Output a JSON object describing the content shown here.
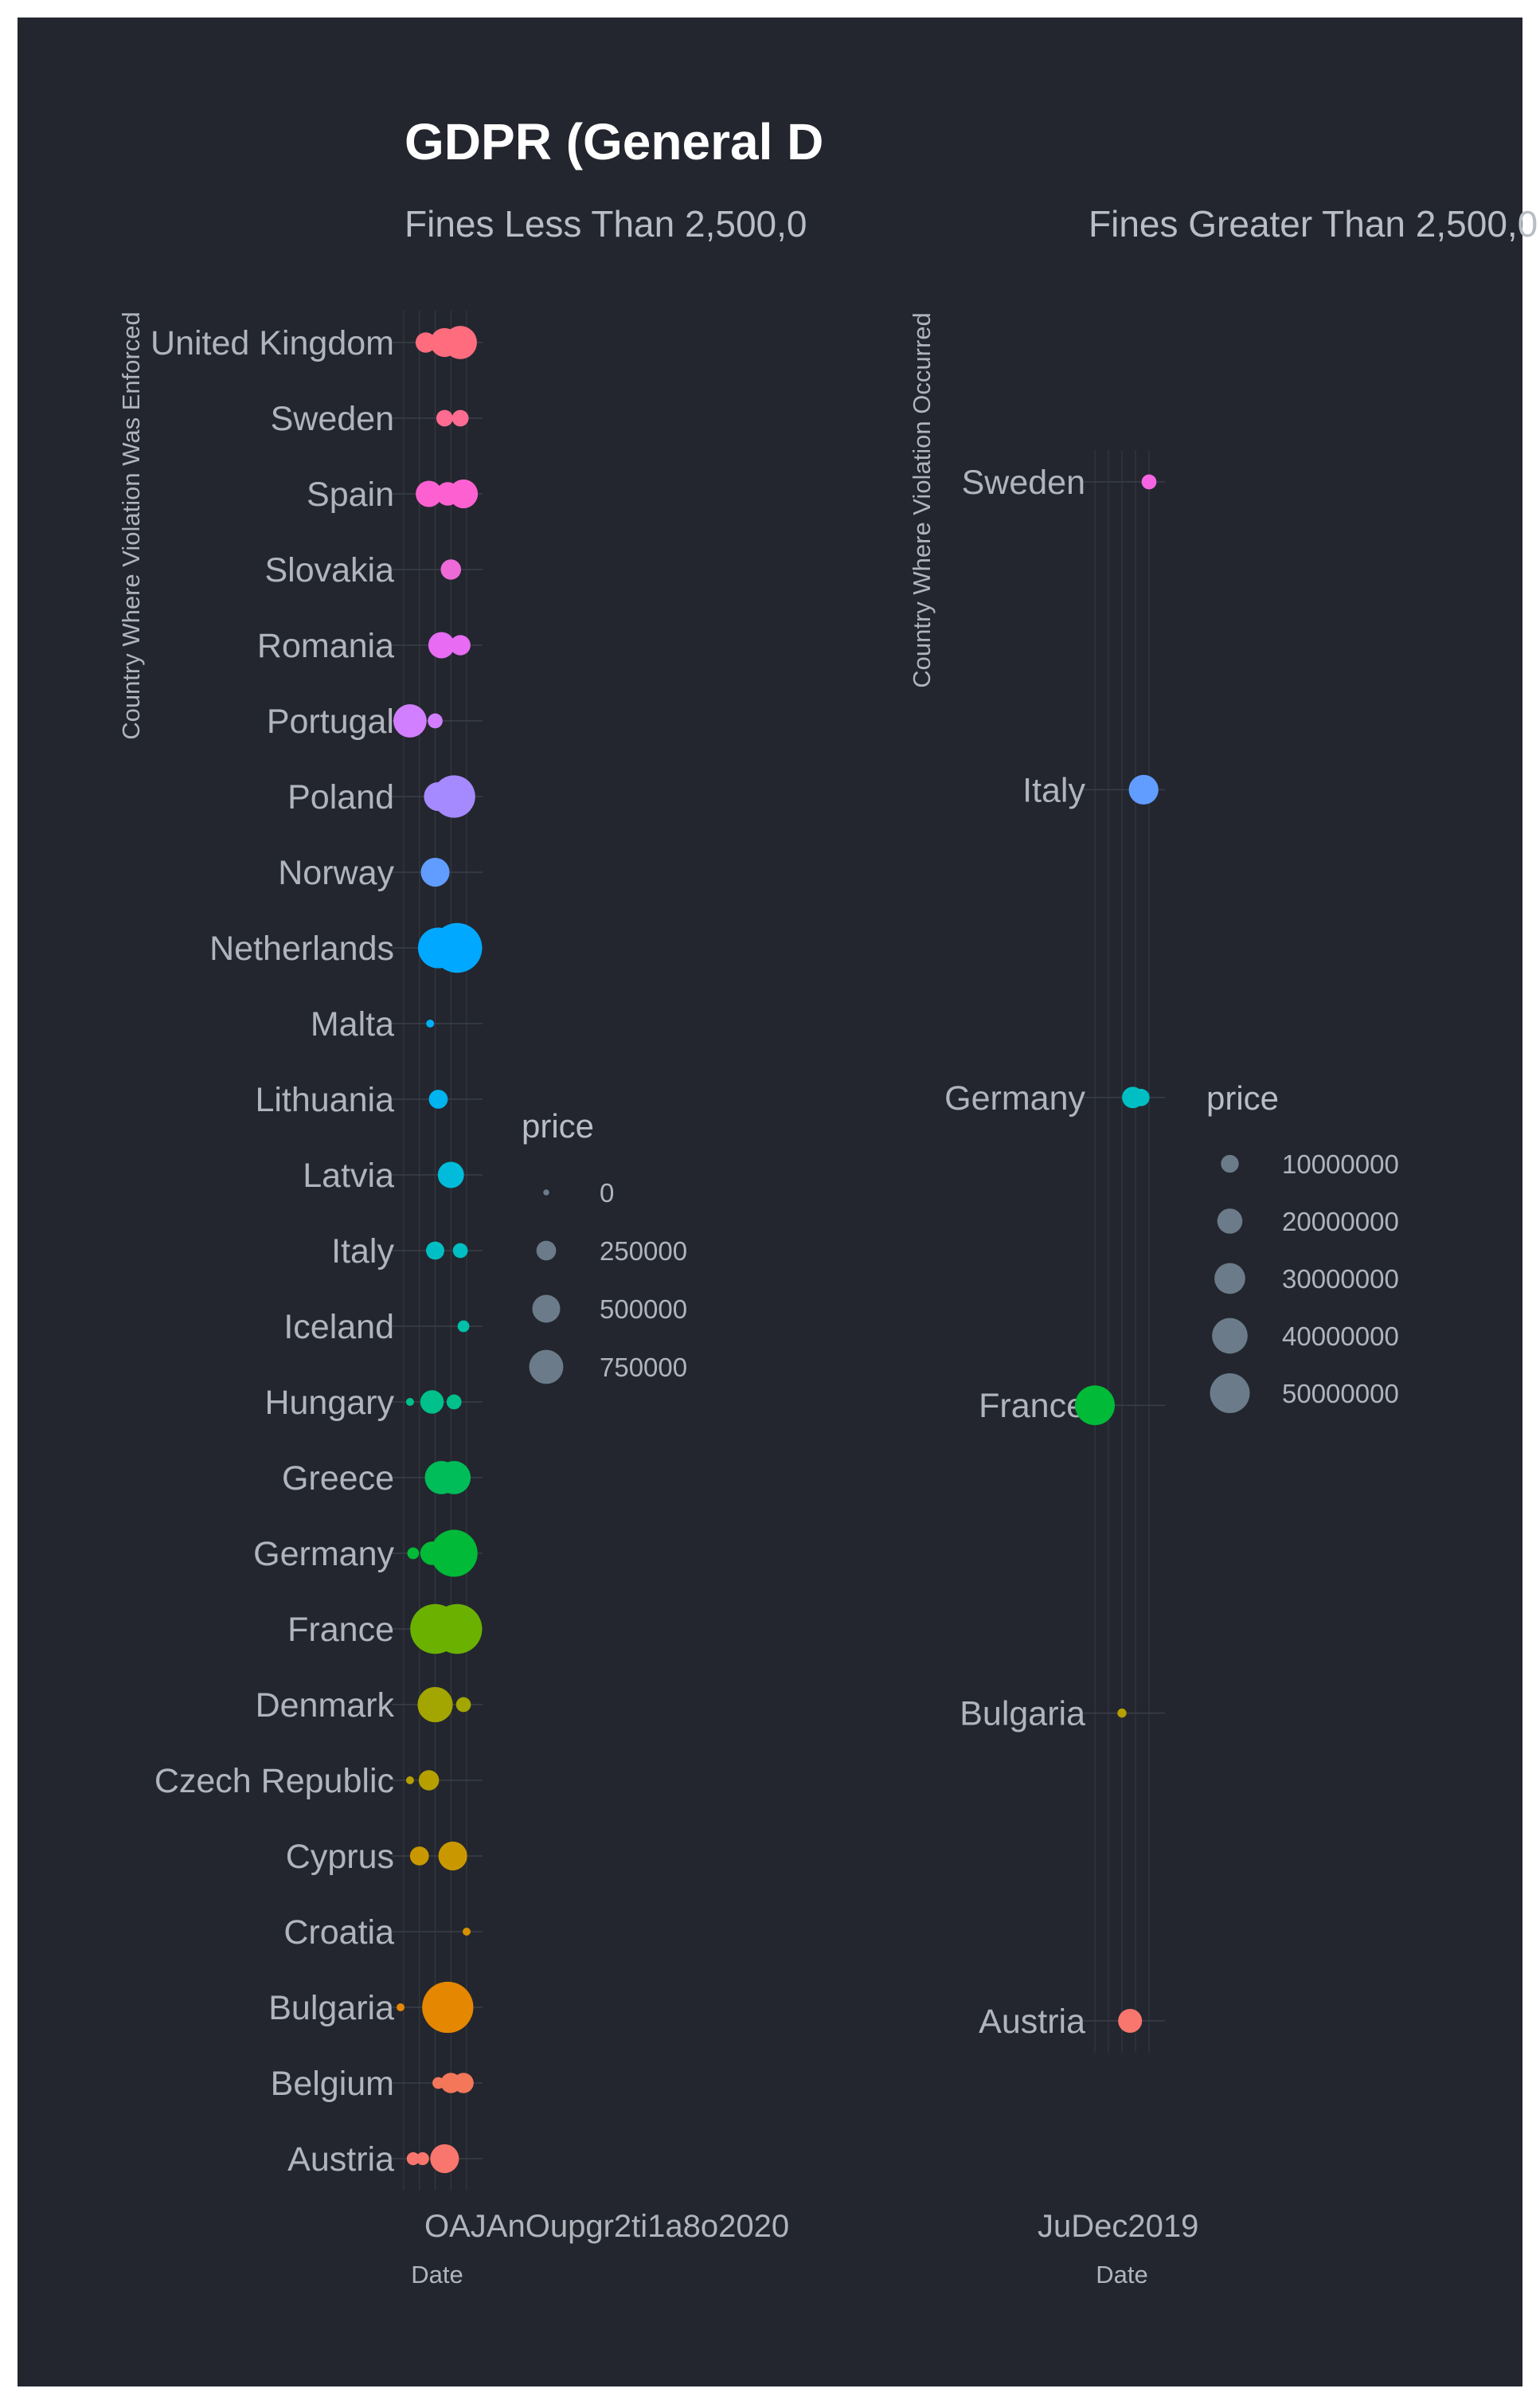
{
  "title": "GDPR (General D",
  "chart_data": [
    {
      "type": "scatter",
      "subtitle": "Fines Less Than 2,500,0",
      "xlabel": "Date",
      "ylabel": "Country Where Violation Was Enforced",
      "x_tick_labels_overlapping": "OAJAnOupgr2ti1a8o2020",
      "x_tick_labels": [
        "Oct 2018",
        "Apr 2019",
        "Jul 2019",
        "Oct 2019",
        "Jan 2020"
      ],
      "xlim": [
        0,
        1
      ],
      "categories": [
        "Austria",
        "Belgium",
        "Bulgaria",
        "Croatia",
        "Cyprus",
        "Czech Republic",
        "Denmark",
        "France",
        "Germany",
        "Greece",
        "Hungary",
        "Iceland",
        "Italy",
        "Latvia",
        "Lithuania",
        "Malta",
        "Netherlands",
        "Norway",
        "Poland",
        "Portugal",
        "Romania",
        "Slovakia",
        "Spain",
        "Sweden",
        "United Kingdom"
      ],
      "colors": [
        "#f8766d",
        "#f4775a",
        "#e58700",
        "#d89000",
        "#c99800",
        "#b6a000",
        "#a3a500",
        "#6bb100",
        "#00ba38",
        "#00bc59",
        "#00c08b",
        "#00c0a9",
        "#00bfc4",
        "#00bbda",
        "#00b4ef",
        "#00b0f6",
        "#00a9ff",
        "#619cff",
        "#a58aff",
        "#d27fff",
        "#e76bf3",
        "#ee6ad6",
        "#fd61d1",
        "#ff6c91",
        "#ff6c7e"
      ],
      "points": [
        {
          "country": "Austria",
          "date": 0.15,
          "price": 60000
        },
        {
          "country": "Austria",
          "date": 0.3,
          "price": 60000
        },
        {
          "country": "Austria",
          "date": 0.65,
          "price": 300000
        },
        {
          "country": "Belgium",
          "date": 0.55,
          "price": 50000
        },
        {
          "country": "Belgium",
          "date": 0.75,
          "price": 150000
        },
        {
          "country": "Belgium",
          "date": 0.95,
          "price": 150000
        },
        {
          "country": "Bulgaria",
          "date": -0.05,
          "price": 5000
        },
        {
          "country": "Bulgaria",
          "date": 0.4,
          "price": 20000
        },
        {
          "country": "Bulgaria",
          "date": 0.7,
          "price": 950000
        },
        {
          "country": "Croatia",
          "date": 1.0,
          "price": 5000
        },
        {
          "country": "Cyprus",
          "date": 0.25,
          "price": 130000
        },
        {
          "country": "Cyprus",
          "date": 0.78,
          "price": 300000
        },
        {
          "country": "Czech Republic",
          "date": 0.1,
          "price": 20000
        },
        {
          "country": "Czech Republic",
          "date": 0.4,
          "price": 150000
        },
        {
          "country": "Denmark",
          "date": 0.5,
          "price": 450000
        },
        {
          "country": "Denmark",
          "date": 0.95,
          "price": 80000
        },
        {
          "country": "France",
          "date": 0.5,
          "price": 900000
        },
        {
          "country": "France",
          "date": 0.85,
          "price": 900000
        },
        {
          "country": "Germany",
          "date": 0.15,
          "price": 50000
        },
        {
          "country": "Germany",
          "date": 0.45,
          "price": 200000
        },
        {
          "country": "Germany",
          "date": 0.8,
          "price": 800000
        },
        {
          "country": "Greece",
          "date": 0.6,
          "price": 400000
        },
        {
          "country": "Greece",
          "date": 0.8,
          "price": 400000
        },
        {
          "country": "Hungary",
          "date": 0.1,
          "price": 20000
        },
        {
          "country": "Hungary",
          "date": 0.45,
          "price": 200000
        },
        {
          "country": "Hungary",
          "date": 0.8,
          "price": 80000
        },
        {
          "country": "Iceland",
          "date": 0.95,
          "price": 50000
        },
        {
          "country": "Italy",
          "date": 0.5,
          "price": 120000
        },
        {
          "country": "Italy",
          "date": 0.9,
          "price": 80000
        },
        {
          "country": "Latvia",
          "date": 0.75,
          "price": 250000
        },
        {
          "country": "Lithuania",
          "date": 0.55,
          "price": 130000
        },
        {
          "country": "Malta",
          "date": 0.42,
          "price": 5000
        },
        {
          "country": "Netherlands",
          "date": 0.55,
          "price": 600000
        },
        {
          "country": "Netherlands",
          "date": 0.85,
          "price": 900000
        },
        {
          "country": "Norway",
          "date": 0.5,
          "price": 300000
        },
        {
          "country": "Poland",
          "date": 0.55,
          "price": 300000
        },
        {
          "country": "Poland",
          "date": 0.8,
          "price": 650000
        },
        {
          "country": "Portugal",
          "date": 0.1,
          "price": 400000
        },
        {
          "country": "Portugal",
          "date": 0.5,
          "price": 80000
        },
        {
          "country": "Romania",
          "date": 0.6,
          "price": 250000
        },
        {
          "country": "Romania",
          "date": 0.9,
          "price": 150000
        },
        {
          "country": "Slovakia",
          "date": 0.75,
          "price": 150000
        },
        {
          "country": "Spain",
          "date": 0.4,
          "price": 250000
        },
        {
          "country": "Spain",
          "date": 0.7,
          "price": 200000
        },
        {
          "country": "Spain",
          "date": 0.95,
          "price": 300000
        },
        {
          "country": "Sweden",
          "date": 0.65,
          "price": 100000
        },
        {
          "country": "Sweden",
          "date": 0.9,
          "price": 100000
        },
        {
          "country": "United Kingdom",
          "date": 0.35,
          "price": 150000
        },
        {
          "country": "United Kingdom",
          "date": 0.65,
          "price": 300000
        },
        {
          "country": "United Kingdom",
          "date": 0.9,
          "price": 400000
        }
      ],
      "size_legend": {
        "title": "price",
        "values": [
          0,
          250000,
          500000,
          750000
        ],
        "labels": [
          "0",
          "250000",
          "500000",
          "750000"
        ]
      }
    },
    {
      "type": "scatter",
      "subtitle": "Fines Greater Than 2,500,0",
      "xlabel": "Date",
      "ylabel": "Country Where Violation Occurred",
      "x_tick_labels_overlapping": "JuDec2019",
      "x_tick_labels": [
        "Jun 2019",
        "Dec 2019"
      ],
      "xlim": [
        0,
        1
      ],
      "categories": [
        "Austria",
        "Bulgaria",
        "France",
        "Germany",
        "Italy",
        "Sweden"
      ],
      "colors": [
        "#f8766d",
        "#b79f00",
        "#00ba38",
        "#00bfc4",
        "#619cff",
        "#f564e3"
      ],
      "points": [
        {
          "country": "Austria",
          "date": 0.65,
          "price": 18000000
        },
        {
          "country": "Bulgaria",
          "date": 0.5,
          "price": 2600000
        },
        {
          "country": "France",
          "date": 0.0,
          "price": 50000000
        },
        {
          "country": "Germany",
          "date": 0.7,
          "price": 14500000
        },
        {
          "country": "Germany",
          "date": 0.85,
          "price": 9500000
        },
        {
          "country": "Italy",
          "date": 0.9,
          "price": 27800000
        },
        {
          "country": "Sweden",
          "date": 1.0,
          "price": 7000000
        }
      ],
      "size_legend": {
        "title": "price",
        "values": [
          10000000,
          20000000,
          30000000,
          40000000,
          50000000
        ],
        "labels": [
          "10000000",
          "20000000",
          "30000000",
          "40000000",
          "50000000"
        ]
      }
    }
  ]
}
